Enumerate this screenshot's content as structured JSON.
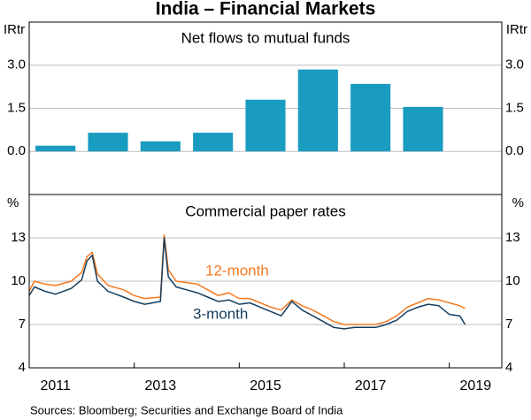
{
  "title": "India – Financial Markets",
  "source": "Sources: Bloomberg; Securities and Exchange Board of India",
  "chart_data": [
    {
      "type": "bar",
      "title": "Net flows to mutual funds",
      "y_unit": "IRtr",
      "color": "#1a9bc0",
      "x": [
        2011.5,
        2012.5,
        2013.5,
        2014.5,
        2015.5,
        2016.5,
        2017.5,
        2018.5
      ],
      "values": [
        0.2,
        0.65,
        0.35,
        0.65,
        1.8,
        2.85,
        2.35,
        1.55
      ],
      "xlim": [
        2011,
        2020
      ],
      "ylim": [
        -1.5,
        4.5
      ],
      "yticks": [
        {
          "value": 0,
          "label": "0.0"
        },
        1.5,
        {
          "value": 3,
          "label": "3.0"
        }
      ],
      "grid": true
    },
    {
      "type": "line",
      "title": "Commercial paper rates",
      "y_unit": "%",
      "x": [
        2011.0,
        2011.1,
        2011.3,
        2011.5,
        2011.8,
        2012.0,
        2012.1,
        2012.2,
        2012.3,
        2012.5,
        2012.8,
        2013.0,
        2013.2,
        2013.5,
        2013.57,
        2013.65,
        2013.8,
        2014.0,
        2014.2,
        2014.4,
        2014.6,
        2014.8,
        2015.0,
        2015.2,
        2015.4,
        2015.6,
        2015.8,
        2016.0,
        2016.2,
        2016.4,
        2016.6,
        2016.8,
        2017.0,
        2017.2,
        2017.4,
        2017.6,
        2017.8,
        2018.0,
        2018.2,
        2018.4,
        2018.6,
        2018.8,
        2019.0,
        2019.2,
        2019.3
      ],
      "series": [
        {
          "name": "12-month",
          "color": "#f47920",
          "values": [
            9.3,
            10.0,
            9.8,
            9.7,
            10.0,
            10.6,
            11.7,
            12.0,
            10.5,
            9.7,
            9.4,
            9.0,
            8.8,
            8.9,
            13.2,
            10.8,
            10.0,
            9.9,
            9.8,
            9.4,
            9.0,
            9.2,
            8.8,
            8.8,
            8.5,
            8.2,
            8.0,
            8.7,
            8.3,
            8.0,
            7.6,
            7.2,
            7.0,
            7.0,
            7.0,
            7.0,
            7.2,
            7.6,
            8.2,
            8.5,
            8.8,
            8.7,
            8.5,
            8.3,
            8.1
          ]
        },
        {
          "name": "3-month",
          "color": "#163d5c",
          "values": [
            9.0,
            9.6,
            9.3,
            9.1,
            9.5,
            10.1,
            11.4,
            11.8,
            10.0,
            9.3,
            8.9,
            8.6,
            8.4,
            8.6,
            13.0,
            10.3,
            9.6,
            9.4,
            9.2,
            8.9,
            8.6,
            8.7,
            8.4,
            8.5,
            8.2,
            7.9,
            7.6,
            8.6,
            8.0,
            7.6,
            7.2,
            6.8,
            6.7,
            6.8,
            6.8,
            6.8,
            7.0,
            7.3,
            7.9,
            8.2,
            8.4,
            8.3,
            7.7,
            7.6,
            7.0
          ]
        }
      ],
      "annotations": [
        "12-month",
        "3-month"
      ],
      "xlim": [
        2011,
        2020
      ],
      "ylim": [
        4,
        16
      ],
      "xticks": [
        2011,
        2013,
        2015,
        2017,
        2019
      ],
      "yticks": [
        4,
        7,
        10,
        13
      ],
      "grid": true
    }
  ]
}
